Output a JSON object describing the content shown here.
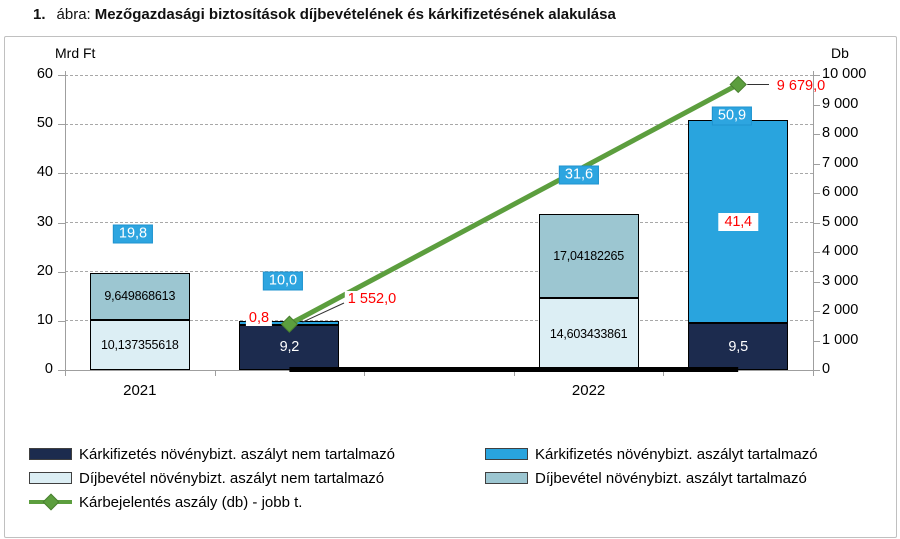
{
  "title": {
    "number": "1.",
    "label": "ábra:",
    "text": "Mezőgazdasági biztosítások díjbevételének és kárkifizetésének alakulása"
  },
  "colors": {
    "navy": "#1c2b4e",
    "bright_blue": "#29a4de",
    "light_blue": "#dceef4",
    "medium_blue": "#9cc6d1",
    "green": "#5c9e3e",
    "green_dark": "#487f2f",
    "label_box_bg": "#2da5e0",
    "label_box_border": "#1f93cf",
    "red": "#fe0000",
    "grid": "#a8a8a8",
    "axis": "#9f9f9f",
    "panel_border": "#c0c0c0",
    "black": "#000000"
  },
  "chart_data": {
    "type": "combo-stacked-bar-line",
    "left_axis": {
      "title": "Mrd Ft",
      "min": 0,
      "max": 60,
      "tick_step": 10,
      "ticks": [
        "0",
        "10",
        "20",
        "30",
        "40",
        "50",
        "60"
      ]
    },
    "right_axis": {
      "title": "Db",
      "min": 0,
      "max": 10000,
      "tick_step": 1000,
      "ticks": [
        "0",
        "1 000",
        "2 000",
        "3 000",
        "4 000",
        "5 000",
        "6 000",
        "7 000",
        "8 000",
        "9 000",
        "10 000"
      ]
    },
    "x_axis": {
      "slots": 5,
      "category_labels": [
        {
          "label": "2021",
          "slot": 0
        },
        {
          "label": "2022",
          "slot": 3
        }
      ]
    },
    "bars": [
      {
        "name": "2021-dijbevetel",
        "slot": 0,
        "total_label": "19,8",
        "segments": [
          {
            "series": "Díjbevétel növénybizt. aszályt nem tartalmazó",
            "value": 10.137355618,
            "label": "10,137355618",
            "color_key": "light_blue",
            "text": "dark"
          },
          {
            "series": "Díjbevétel növénybizt. aszályt tartalmazó",
            "value": 9.649868613,
            "label": "9,649868613",
            "color_key": "medium_blue",
            "text": "dark"
          }
        ]
      },
      {
        "name": "2021-karkifizetes",
        "slot": 1,
        "total_label": "10,0",
        "segments": [
          {
            "series": "Kárkifizetés növénybizt. aszályt nem tartalmazó",
            "value": 9.2,
            "label": "9,2",
            "color_key": "navy",
            "text": "light"
          },
          {
            "series": "Kárkifizetés növénybizt. aszályt tartalmazó",
            "value": 0.8,
            "label": "",
            "color_key": "bright_blue",
            "text": "none"
          }
        ]
      },
      {
        "name": "2022-dijbevetel",
        "slot": 3,
        "total_label": "31,6",
        "segments": [
          {
            "series": "Díjbevétel növénybizt. aszályt nem tartalmazó",
            "value": 14.603433861,
            "label": "14,603433861",
            "color_key": "light_blue",
            "text": "dark"
          },
          {
            "series": "Díjbevétel növénybizt. aszályt tartalmazó",
            "value": 17.04182265,
            "label": "17,04182265",
            "color_key": "medium_blue",
            "text": "dark"
          }
        ]
      },
      {
        "name": "2022-karkifizetes",
        "slot": 4,
        "total_label": "50,9",
        "segments": [
          {
            "series": "Kárkifizetés növénybizt. aszályt nem tartalmazó",
            "value": 9.5,
            "label": "9,5",
            "color_key": "navy",
            "text": "light"
          },
          {
            "series": "Kárkifizetés növénybizt. aszályt tartalmazó",
            "value": 41.4,
            "label": "41,4",
            "color_key": "bright_blue",
            "text": "redbox"
          }
        ]
      }
    ],
    "line": {
      "name": "Kárbejelentés aszály (db) - jobb t.",
      "axis": "right",
      "points": [
        {
          "slot": 1,
          "value": 1552,
          "label": "1 552,0"
        },
        {
          "slot": 4,
          "value": 9679,
          "label": "9 679,0"
        }
      ]
    },
    "annotations": [
      {
        "text": "0,8"
      },
      {
        "text": "1 552,0"
      },
      {
        "text": "9 679,0"
      }
    ]
  },
  "legend": {
    "items": [
      {
        "label": "Kárkifizetés növénybizt. aszályt nem tartalmazó",
        "color_key": "navy",
        "kind": "box"
      },
      {
        "label": "Kárkifizetés növénybizt. aszályt tartalmazó",
        "color_key": "bright_blue",
        "kind": "box"
      },
      {
        "label": "Díjbevétel  növénybizt. aszályt nem tartalmazó",
        "color_key": "light_blue",
        "kind": "box"
      },
      {
        "label": "Díjbevétel növénybizt. aszályt tartalmazó",
        "color_key": "medium_blue",
        "kind": "box"
      },
      {
        "label": "Kárbejelentés aszály (db) - jobb t.",
        "color_key": "green",
        "kind": "line"
      }
    ]
  }
}
